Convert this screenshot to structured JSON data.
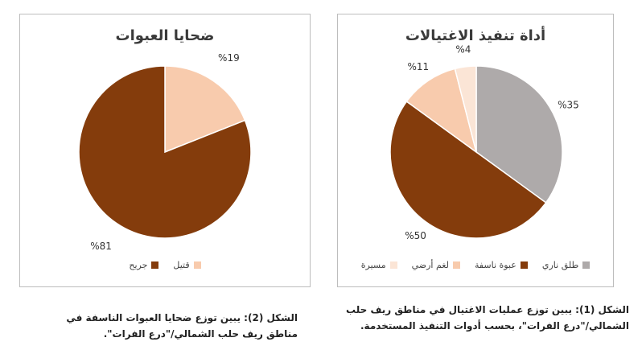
{
  "chart_data": [
    {
      "type": "pie",
      "title": "ضحايا العبوات",
      "categories": [
        "قتيل",
        "جريح"
      ],
      "values": [
        19,
        81
      ],
      "value_labels": [
        "%19",
        "%81"
      ],
      "colors": [
        "#F8CBAD",
        "#843C0C"
      ],
      "legend_position": "bottom"
    },
    {
      "type": "pie",
      "title": "أداة تنفيذ الاغتيالات",
      "categories": [
        "طلق ناري",
        "عبوة ناسفة",
        "لغم أرضي",
        "مسيرة"
      ],
      "values": [
        35,
        50,
        11,
        4
      ],
      "value_labels": [
        "%35",
        "%50",
        "%11",
        "%4"
      ],
      "colors": [
        "#AEAAAA",
        "#843C0C",
        "#F8CBAD",
        "#FBE5D6"
      ],
      "legend_position": "bottom"
    }
  ],
  "captions": {
    "left": "الشكل (2): يبين توزع ضحايا العبوات الناسفة في مناطق ريف حلب الشمالي/\"درع الفرات\".",
    "right": "الشكل (1): يبين توزع عمليات الاغتيال في مناطق ريف حلب الشمالي/\"درع الفرات\"، بحسب أدوات التنفيذ المستخدمة."
  }
}
